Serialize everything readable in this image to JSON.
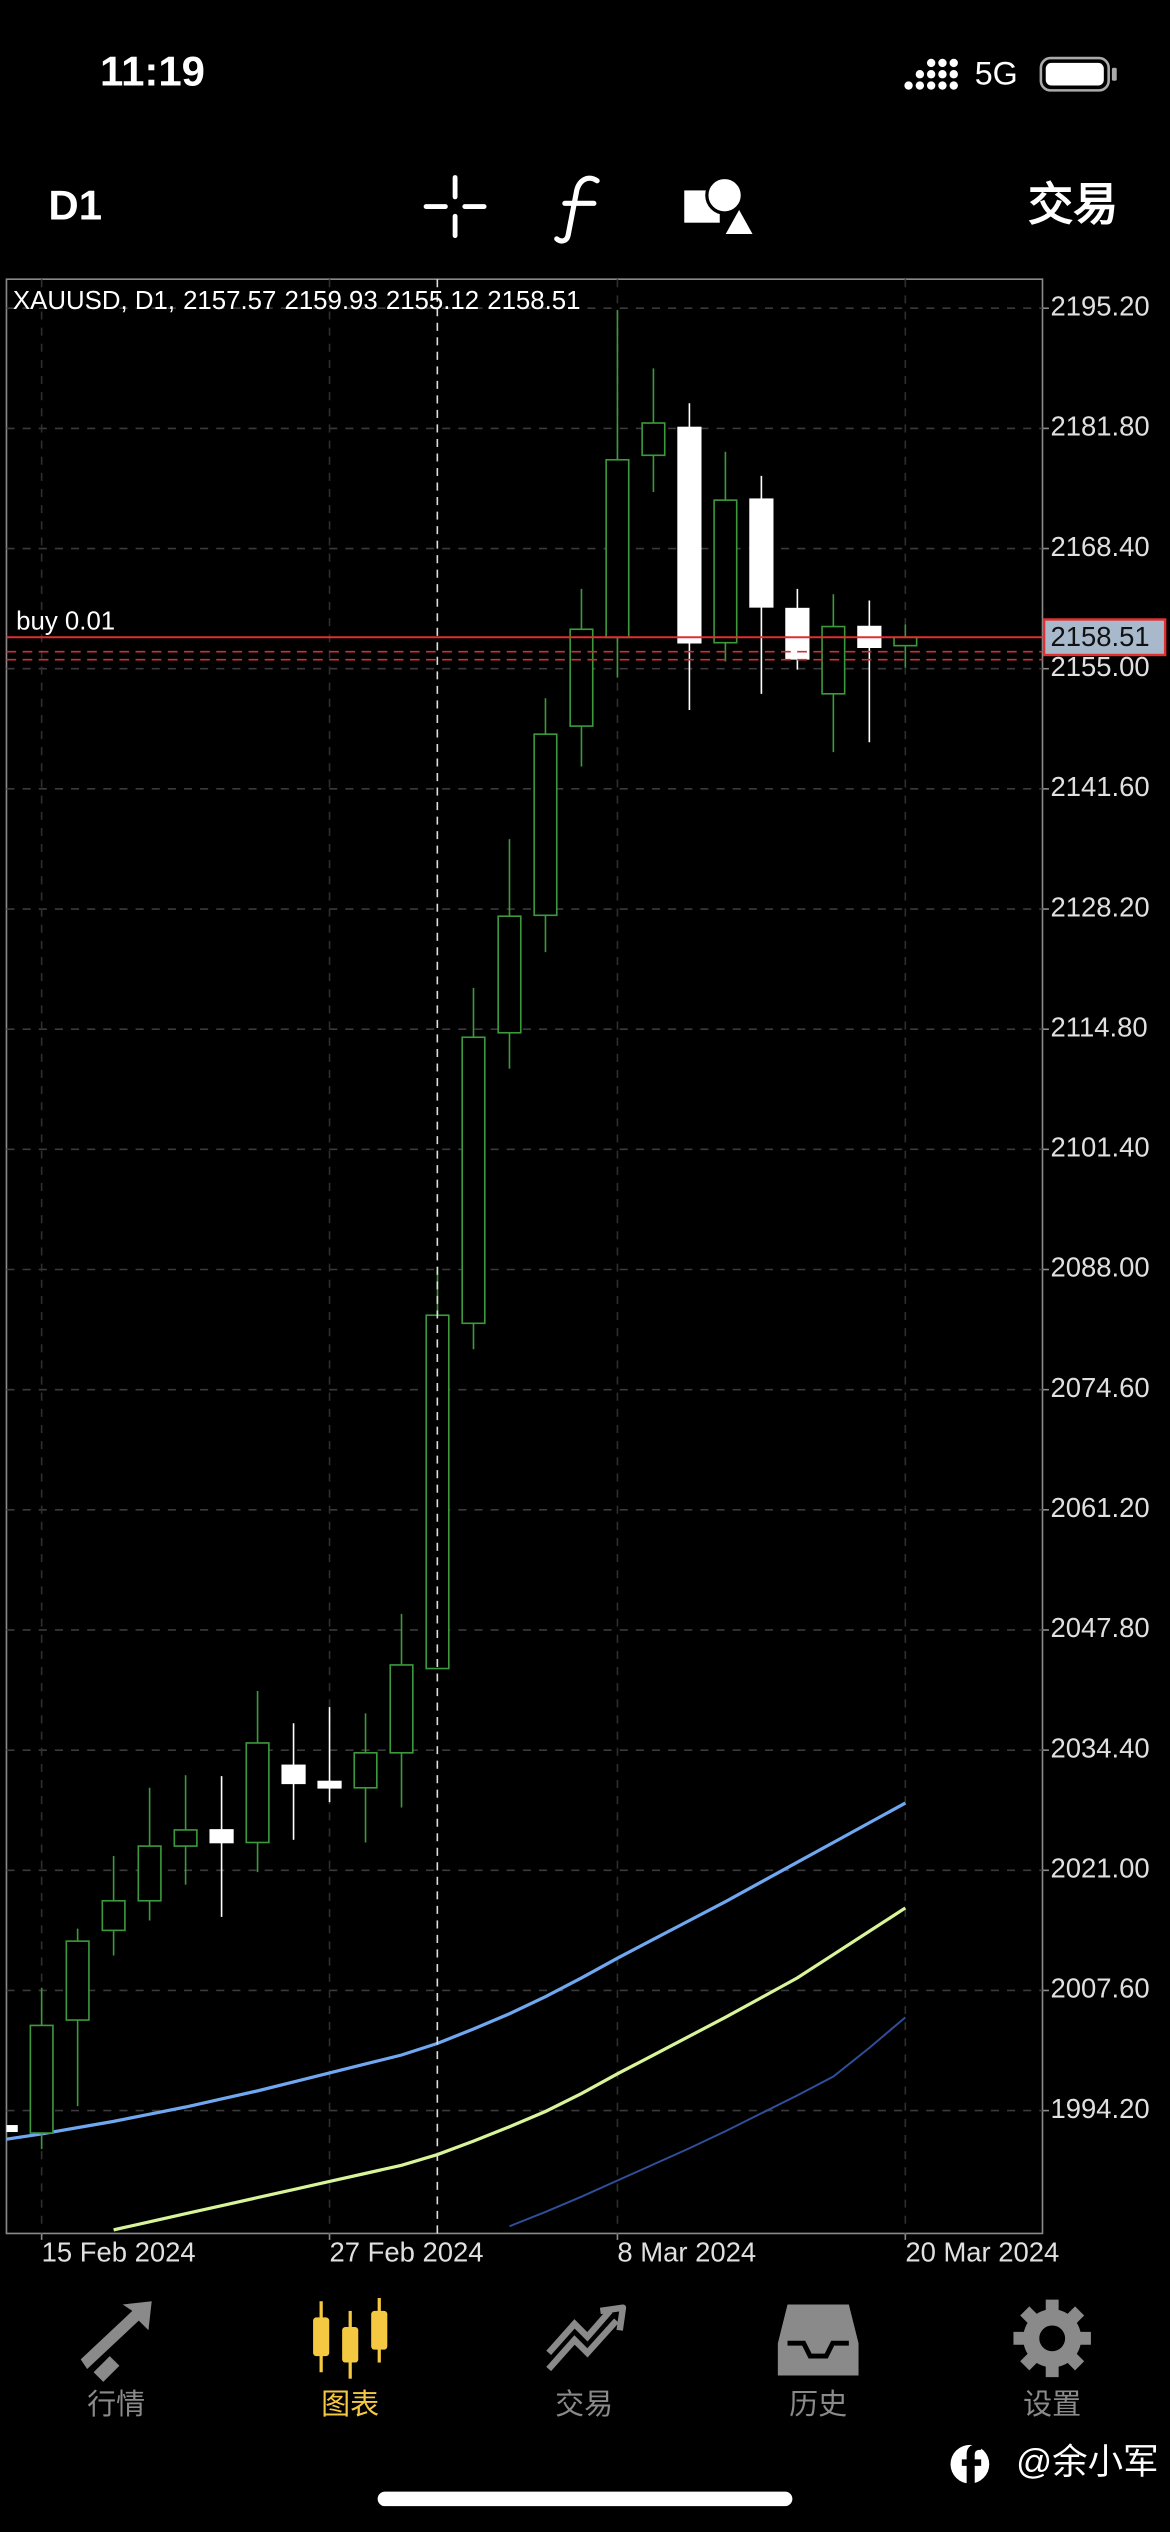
{
  "status_bar": {
    "time": "11:19",
    "network": "5G"
  },
  "toolbar": {
    "timeframe": "D1",
    "action": "交易"
  },
  "chart_data": {
    "type": "candlestick",
    "title": "XAUUSD, D1,",
    "categories": [
      null,
      "15 Feb 2024",
      null,
      null,
      null,
      null,
      null,
      null,
      null,
      "27 Feb 2024",
      null,
      null,
      null,
      null,
      null,
      null,
      null,
      "8 Mar 2024",
      null,
      null,
      null,
      null,
      null,
      null,
      null,
      "20 Mar 2024"
    ],
    "open": [
      1992.5,
      1991.7,
      2004.3,
      2014.3,
      2017.6,
      2023.7,
      2025.5,
      2024.1,
      2032.7,
      2030.9,
      2030.2,
      2034.1,
      2043.5,
      2082.0,
      2114.4,
      2127.5,
      2148.6,
      2158.5,
      2178.8,
      2181.9,
      2157.9,
      2173.9,
      2161.7,
      2152.2,
      2159.7,
      2157.57
    ],
    "high": [
      1993.0,
      2007.9,
      2014.5,
      2022.6,
      2030.2,
      2031.6,
      2031.5,
      2041.0,
      2037.4,
      2039.2,
      2038.5,
      2049.6,
      2088.3,
      2119.4,
      2136.0,
      2151.7,
      2163.9,
      2195.0,
      2188.5,
      2184.6,
      2179.2,
      2176.5,
      2163.9,
      2163.3,
      2162.6,
      2159.93
    ],
    "low": [
      1991.0,
      1989.9,
      1994.7,
      2011.5,
      2015.4,
      2019.4,
      2015.8,
      2020.8,
      2024.4,
      2028.6,
      2024.1,
      2028.0,
      2043.5,
      2079.1,
      2110.4,
      2123.4,
      2144.1,
      2154.0,
      2174.7,
      2150.4,
      2155.8,
      2152.2,
      2154.9,
      2145.7,
      2146.8,
      2155.12
    ],
    "close": [
      1991.9,
      2003.7,
      2013.1,
      2017.6,
      2023.7,
      2025.5,
      2024.1,
      2035.2,
      2030.7,
      2030.2,
      2034.1,
      2043.9,
      2082.9,
      2113.9,
      2127.4,
      2147.7,
      2159.4,
      2178.3,
      2182.4,
      2157.9,
      2173.8,
      2161.9,
      2156.1,
      2159.7,
      2157.4,
      2158.51
    ],
    "up_color": "#3c9a3c",
    "down_color": "#ffffff",
    "series": [
      {
        "color": "#6fa8f0",
        "values": [
          1991.0,
          1991.6,
          1992.3,
          1993.0,
          1993.8,
          1994.6,
          1995.5,
          1996.4,
          1997.4,
          1998.4,
          1999.4,
          2000.4,
          2001.7,
          2003.3,
          2005.0,
          2006.9,
          2009.0,
          2011.2,
          2013.3,
          2015.4,
          2017.5,
          2019.7,
          2021.9,
          2024.1,
          2026.3,
          2028.5
        ]
      },
      {
        "color": "#d8f59a",
        "values": [
          null,
          null,
          null,
          1980.9,
          1981.8,
          1982.7,
          1983.6,
          1984.5,
          1985.4,
          1986.3,
          1987.2,
          1988.1,
          1989.3,
          1990.8,
          1992.4,
          1994.1,
          1996.1,
          1998.3,
          2000.4,
          2002.5,
          2004.6,
          2006.8,
          2009.0,
          2011.6,
          2014.2,
          2016.8
        ]
      },
      {
        "color": "#2f4f9a",
        "values": [
          null,
          null,
          null,
          null,
          null,
          null,
          null,
          null,
          null,
          null,
          null,
          null,
          null,
          null,
          1981.3,
          1982.9,
          1984.6,
          1986.4,
          1988.2,
          1990.0,
          1991.9,
          1993.9,
          1995.9,
          1998.0,
          2001.2,
          2004.6
        ]
      }
    ],
    "price_line_color": "#e03030",
    "levels": [
      {
        "label": "buy 0.01",
        "value": 2156.9,
        "color": "#d03030"
      },
      {
        "value": 2156.0,
        "color": "#d03030"
      }
    ],
    "ylim": [
      1980.5,
      2198.44
    ],
    "yticks": [
      {
        "value": 2195.2,
        "label": "2195.20"
      },
      {
        "value": 2181.8,
        "label": "2181.80"
      },
      {
        "value": 2168.4,
        "label": "2168.40"
      },
      {
        "value": 2155,
        "label": "2155.00"
      },
      {
        "value": 2141.6,
        "label": "2141.60"
      },
      {
        "value": 2128.2,
        "label": "2128.20"
      },
      {
        "value": 2114.8,
        "label": "2114.80"
      },
      {
        "value": 2101.4,
        "label": "2101.40"
      },
      {
        "value": 2088,
        "label": "2088.00"
      },
      {
        "value": 2074.6,
        "label": "2074.60"
      },
      {
        "value": 2061.2,
        "label": "2061.20"
      },
      {
        "value": 2047.8,
        "label": "2047.80"
      },
      {
        "value": 2034.4,
        "label": "2034.40"
      },
      {
        "value": 2021,
        "label": "2021.00"
      },
      {
        "value": 2007.6,
        "label": "2007.60"
      },
      {
        "value": 1994.2,
        "label": "1994.20"
      }
    ],
    "grid": true
  },
  "tab_bar": {
    "items": [
      {
        "label": "行情"
      },
      {
        "label": "图表"
      },
      {
        "label": "交易"
      },
      {
        "label": "历史"
      },
      {
        "label": "设置"
      }
    ],
    "active": 1,
    "active_color": "#f5c842",
    "color": "#8a8a8a"
  },
  "watermark": "@余小军"
}
